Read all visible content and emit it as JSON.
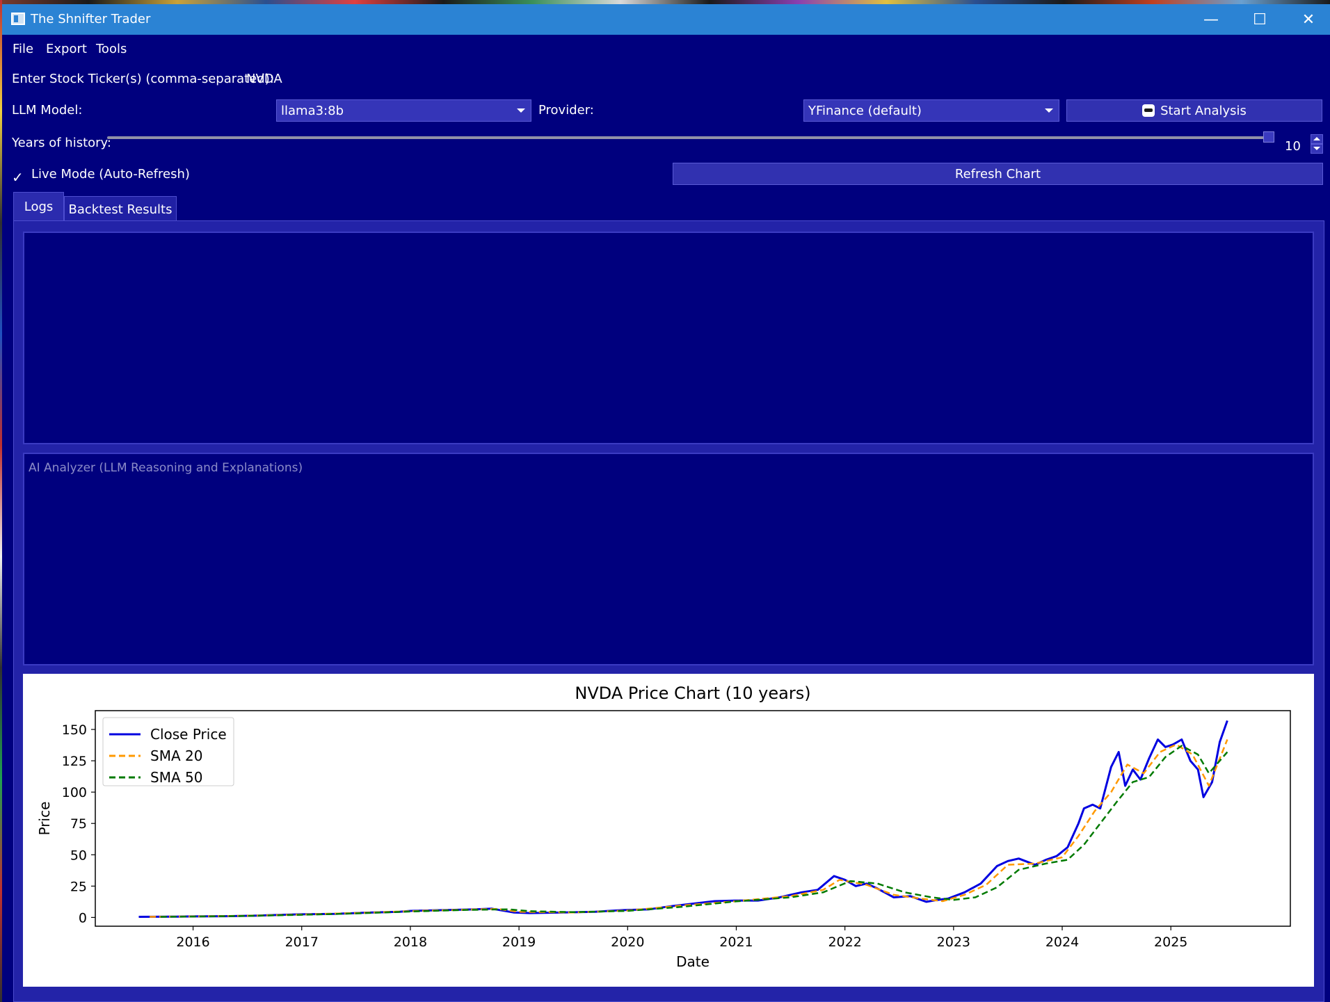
{
  "window": {
    "title": "The Shnifter Trader",
    "minimize_glyph": "—",
    "maximize_glyph": "☐",
    "close_glyph": "✕"
  },
  "menu": {
    "items": [
      "File",
      "Export",
      "Tools"
    ]
  },
  "form": {
    "ticker_label": "Enter Stock Ticker(s) (comma-separated):",
    "ticker_value": "NVDA",
    "llm_label": "LLM Model:",
    "llm_value": "llama3:8b",
    "provider_label": "Provider:",
    "provider_value": "YFinance (default)",
    "start_button": "Start Analysis",
    "years_label": "Years of history:",
    "years_value": "10",
    "years_slider_fraction": 1.0,
    "live_mode_label": "Live Mode (Auto-Refresh)",
    "live_mode_checked": true,
    "refresh_button": "Refresh Chart"
  },
  "tabs": [
    {
      "label": "Logs",
      "active": true
    },
    {
      "label": "Backtest Results",
      "active": false
    }
  ],
  "ai_analyzer": {
    "placeholder": "AI Analyzer (LLM Reasoning and Explanations)"
  },
  "icons": {
    "app": "app-window-icon",
    "start": "robot-icon",
    "check": "checkmark-icon"
  },
  "colors": {
    "background": "#00007e",
    "titlebar": "#2b83d4",
    "close_line": "#0000e0",
    "sma20": "#ff9900",
    "sma50": "#007a00"
  },
  "chart_data": {
    "type": "line",
    "title": "NVDA Price Chart (10 years)",
    "xlabel": "Date",
    "ylabel": "Price",
    "xlim": [
      2015.1,
      2026.1
    ],
    "ylim": [
      -7,
      165
    ],
    "x_ticks": [
      2016,
      2017,
      2018,
      2019,
      2020,
      2021,
      2022,
      2023,
      2024,
      2025
    ],
    "y_ticks": [
      0,
      25,
      50,
      75,
      100,
      125,
      150
    ],
    "legend_position": "top-left",
    "grid": false,
    "series": [
      {
        "name": "Close Price",
        "style": "solid",
        "color": "#0000e0",
        "x": [
          2015.5,
          2015.8,
          2016.0,
          2016.3,
          2016.6,
          2016.9,
          2017.0,
          2017.3,
          2017.6,
          2017.9,
          2018.0,
          2018.3,
          2018.6,
          2018.75,
          2018.95,
          2019.1,
          2019.4,
          2019.7,
          2019.95,
          2020.2,
          2020.4,
          2020.6,
          2020.8,
          2021.0,
          2021.2,
          2021.4,
          2021.6,
          2021.75,
          2021.9,
          2022.0,
          2022.1,
          2022.2,
          2022.3,
          2022.45,
          2022.6,
          2022.75,
          2022.85,
          2022.95,
          2023.1,
          2023.25,
          2023.4,
          2023.5,
          2023.6,
          2023.75,
          2023.85,
          2023.95,
          2024.05,
          2024.15,
          2024.2,
          2024.28,
          2024.35,
          2024.45,
          2024.52,
          2024.58,
          2024.65,
          2024.72,
          2024.8,
          2024.88,
          2024.95,
          2025.02,
          2025.1,
          2025.18,
          2025.25,
          2025.3,
          2025.38,
          2025.45,
          2025.52
        ],
        "y": [
          0.5,
          0.6,
          0.8,
          1.0,
          1.5,
          2.3,
          2.5,
          2.8,
          3.8,
          4.5,
          5.2,
          5.8,
          6.5,
          7.0,
          4.0,
          3.5,
          4.0,
          4.5,
          5.8,
          6.5,
          9.0,
          11.0,
          13.0,
          13.5,
          13.5,
          16.0,
          20.0,
          22.0,
          33.0,
          30.0,
          25.0,
          27.0,
          23.0,
          16.0,
          17.0,
          12.5,
          14.0,
          15.0,
          20.0,
          27.0,
          41.0,
          45.0,
          47.0,
          42.0,
          46.0,
          49.0,
          56.0,
          75.0,
          87.0,
          90.0,
          87.0,
          120.0,
          132.0,
          105.0,
          118.0,
          110.0,
          127.0,
          142.0,
          136.0,
          138.0,
          142.0,
          125.0,
          118.0,
          96.0,
          108.0,
          140.0,
          157.0
        ]
      },
      {
        "name": "SMA 20",
        "style": "dashed",
        "color": "#ff9900",
        "x": [
          2015.6,
          2016.0,
          2016.5,
          2017.0,
          2017.5,
          2018.0,
          2018.5,
          2018.8,
          2019.0,
          2019.5,
          2020.0,
          2020.5,
          2021.0,
          2021.5,
          2021.8,
          2021.95,
          2022.2,
          2022.45,
          2022.7,
          2022.9,
          2023.1,
          2023.3,
          2023.5,
          2023.75,
          2024.0,
          2024.15,
          2024.3,
          2024.45,
          2024.6,
          2024.75,
          2024.9,
          2025.05,
          2025.2,
          2025.35,
          2025.52
        ],
        "y": [
          0.5,
          0.8,
          1.3,
          2.3,
          3.5,
          5.0,
          6.2,
          6.8,
          4.5,
          4.0,
          5.5,
          9.5,
          13.0,
          17.0,
          22.0,
          30.0,
          26.0,
          18.0,
          15.0,
          13.0,
          18.0,
          26.0,
          42.0,
          43.0,
          48.0,
          65.0,
          85.0,
          100.0,
          122.0,
          115.0,
          132.0,
          138.0,
          130.0,
          105.0,
          142.0
        ]
      },
      {
        "name": "SMA 50",
        "style": "dashed",
        "color": "#007a00",
        "x": [
          2015.7,
          2016.0,
          2016.5,
          2017.0,
          2017.5,
          2018.0,
          2018.5,
          2018.9,
          2019.1,
          2019.5,
          2020.0,
          2020.5,
          2021.0,
          2021.5,
          2021.8,
          2022.05,
          2022.3,
          2022.55,
          2022.8,
          2023.0,
          2023.2,
          2023.4,
          2023.6,
          2023.85,
          2024.05,
          2024.2,
          2024.35,
          2024.5,
          2024.65,
          2024.8,
          2024.95,
          2025.1,
          2025.25,
          2025.35,
          2025.52
        ],
        "y": [
          0.5,
          0.7,
          1.2,
          2.1,
          3.2,
          4.7,
          6.0,
          6.5,
          5.0,
          4.2,
          5.2,
          8.5,
          12.8,
          16.0,
          20.0,
          29.0,
          27.0,
          20.0,
          16.0,
          14.0,
          16.0,
          24.0,
          38.0,
          43.0,
          46.0,
          58.0,
          75.0,
          92.0,
          108.0,
          112.0,
          128.0,
          137.0,
          130.0,
          115.0,
          132.0
        ]
      }
    ]
  }
}
